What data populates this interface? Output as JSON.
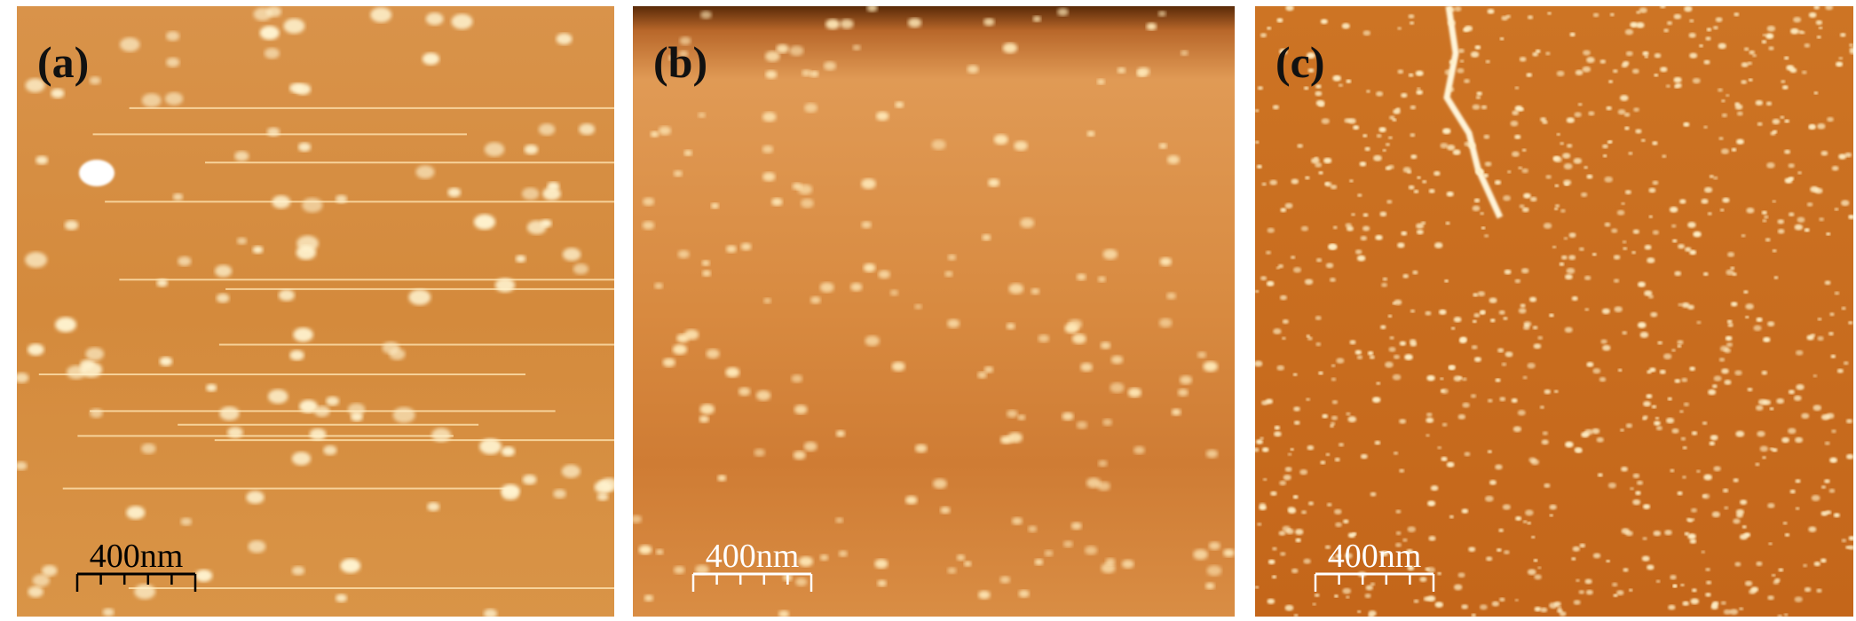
{
  "panels": [
    {
      "label": "(a)",
      "scale_bar": "400nm"
    },
    {
      "label": "(b)",
      "scale_bar": "400nm"
    },
    {
      "label": "(c)",
      "scale_bar": "400nm"
    }
  ]
}
